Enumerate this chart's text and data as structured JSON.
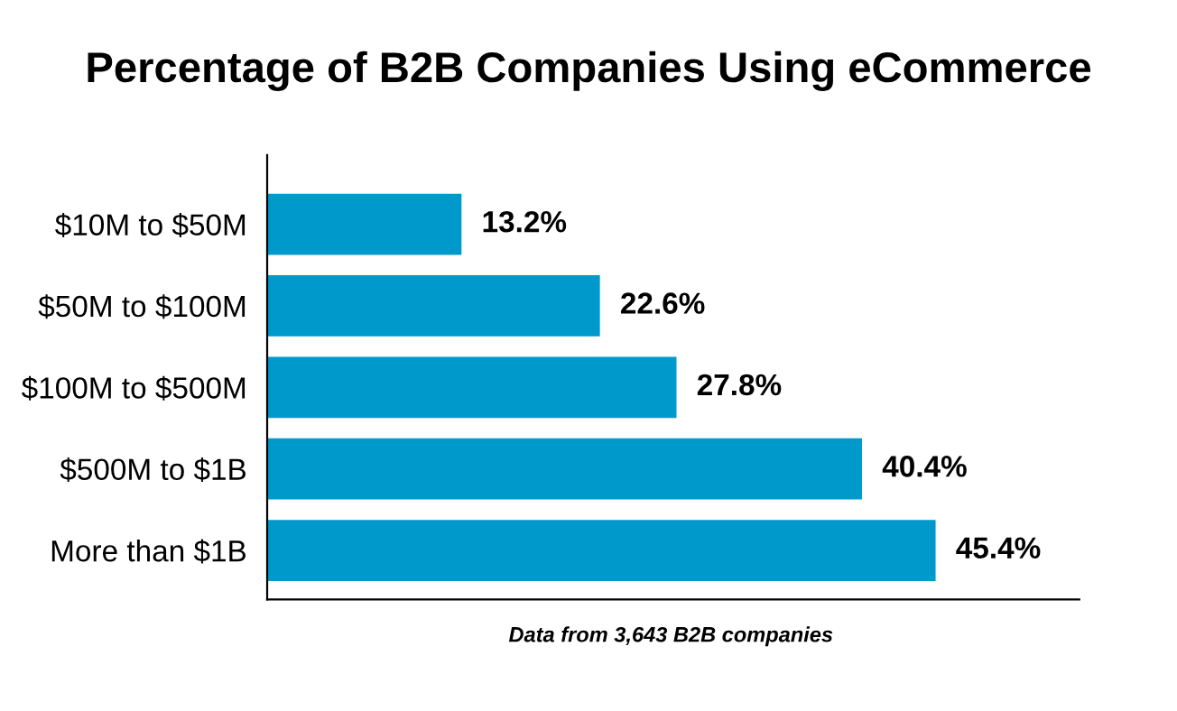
{
  "chart_data": {
    "type": "bar",
    "orientation": "horizontal",
    "title": "Percentage of B2B Companies Using eCommerce",
    "categories": [
      "$10M to $50M",
      "$50M to $100M",
      "$100M to $500M",
      "$500M to $1B",
      "More than $1B"
    ],
    "values": [
      13.2,
      22.6,
      27.8,
      40.4,
      45.4
    ],
    "color": "#0099cc",
    "value_labels": [
      "13.2%",
      "22.6%",
      "27.8%",
      "40.4%",
      "45.4%"
    ],
    "annotations": [
      "Data from 3,643 B2B companies"
    ],
    "grid": false,
    "legend": false
  }
}
